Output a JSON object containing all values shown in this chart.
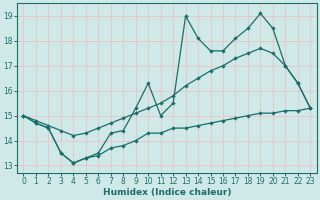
{
  "xlabel": "Humidex (Indice chaleur)",
  "bg_color": "#cfe8e8",
  "grid_color": "#e8c8c8",
  "line_color": "#1a6e6a",
  "xlim": [
    -0.5,
    23.5
  ],
  "ylim": [
    12.7,
    19.5
  ],
  "xticks": [
    0,
    1,
    2,
    3,
    4,
    5,
    6,
    7,
    8,
    9,
    10,
    11,
    12,
    13,
    14,
    15,
    16,
    17,
    18,
    19,
    20,
    21,
    22,
    23
  ],
  "yticks": [
    13,
    14,
    15,
    16,
    17,
    18,
    19
  ],
  "line1_x": [
    0,
    1,
    2,
    3,
    4,
    5,
    6,
    7,
    8,
    9,
    10,
    11,
    12,
    13,
    14,
    15,
    16,
    17,
    18,
    19,
    20,
    21,
    22,
    23
  ],
  "line1_y": [
    15.0,
    14.7,
    14.5,
    13.5,
    13.1,
    13.3,
    13.5,
    14.3,
    14.4,
    15.3,
    16.3,
    15.0,
    15.5,
    19.0,
    18.1,
    17.6,
    17.6,
    18.1,
    18.5,
    19.1,
    18.5,
    17.0,
    16.3,
    15.3
  ],
  "line2_x": [
    0,
    1,
    2,
    3,
    4,
    5,
    6,
    7,
    8,
    9,
    10,
    11,
    12,
    13,
    14,
    15,
    16,
    17,
    18,
    19,
    20,
    21,
    22,
    23
  ],
  "line2_y": [
    15.0,
    14.8,
    14.6,
    14.4,
    14.2,
    14.3,
    14.5,
    14.7,
    14.9,
    15.1,
    15.3,
    15.5,
    15.8,
    16.2,
    16.5,
    16.8,
    17.0,
    17.3,
    17.5,
    17.7,
    17.5,
    17.0,
    16.3,
    15.3
  ],
  "line3_x": [
    0,
    1,
    2,
    3,
    4,
    5,
    6,
    7,
    8,
    9,
    10,
    11,
    12,
    13,
    14,
    15,
    16,
    17,
    18,
    19,
    20,
    21,
    22,
    23
  ],
  "line3_y": [
    15.0,
    14.7,
    14.5,
    13.5,
    13.1,
    13.3,
    13.4,
    13.7,
    13.8,
    14.0,
    14.3,
    14.3,
    14.5,
    14.5,
    14.6,
    14.7,
    14.8,
    14.9,
    15.0,
    15.1,
    15.1,
    15.2,
    15.2,
    15.3
  ]
}
